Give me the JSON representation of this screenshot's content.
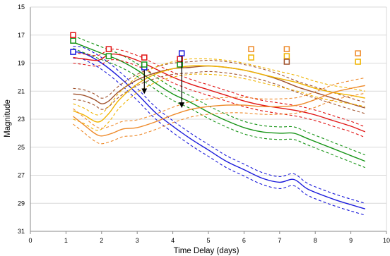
{
  "chart_data": {
    "type": "line",
    "title": "",
    "xlabel": "Time Delay (days)",
    "ylabel": "Magnitude",
    "xlim": [
      0,
      10
    ],
    "ylim": [
      31,
      15
    ],
    "y_inverted": true,
    "xticks": [
      "0",
      "1",
      "2",
      "3",
      "4",
      "5",
      "6",
      "7",
      "8",
      "9",
      "10"
    ],
    "yticks": [
      "15",
      "17",
      "19",
      "21",
      "23",
      "25",
      "27",
      "29",
      "31"
    ],
    "grid": "horizontal",
    "legend": "none",
    "series": [
      {
        "color": "#1a1adb",
        "points": [
          [
            1.2,
            18.2
          ],
          [
            1.5,
            18.3
          ],
          [
            2.0,
            19.0
          ],
          [
            2.5,
            20.0
          ],
          [
            3.0,
            21.2
          ],
          [
            3.5,
            22.5
          ],
          [
            4.0,
            23.5
          ],
          [
            4.5,
            24.4
          ],
          [
            5.0,
            25.2
          ],
          [
            5.5,
            26.0
          ],
          [
            6.0,
            26.6
          ],
          [
            6.5,
            27.2
          ],
          [
            7.0,
            27.5
          ],
          [
            7.4,
            27.3
          ],
          [
            7.8,
            28.0
          ],
          [
            8.5,
            28.7
          ],
          [
            9.0,
            29.1
          ],
          [
            9.4,
            29.4
          ]
        ],
        "band": [
          0.4,
          0.45
        ]
      },
      {
        "color": "#169416",
        "points": [
          [
            1.2,
            17.5
          ],
          [
            1.5,
            17.8
          ],
          [
            2.0,
            18.3
          ],
          [
            2.5,
            18.8
          ],
          [
            3.0,
            19.5
          ],
          [
            3.5,
            20.4
          ],
          [
            4.0,
            21.2
          ],
          [
            4.5,
            21.8
          ],
          [
            5.0,
            22.5
          ],
          [
            5.5,
            23.1
          ],
          [
            6.0,
            23.6
          ],
          [
            6.5,
            23.9
          ],
          [
            7.0,
            24.0
          ],
          [
            7.4,
            24.0
          ],
          [
            7.8,
            24.4
          ],
          [
            8.5,
            25.1
          ],
          [
            9.0,
            25.6
          ],
          [
            9.4,
            26.0
          ]
        ],
        "band": [
          0.45,
          0.45
        ]
      },
      {
        "color": "#e11414",
        "points": [
          [
            1.2,
            18.6
          ],
          [
            1.5,
            18.7
          ],
          [
            1.9,
            18.8
          ],
          [
            2.2,
            18.4
          ],
          [
            2.5,
            18.4
          ],
          [
            3.0,
            18.8
          ],
          [
            3.5,
            19.4
          ],
          [
            4.0,
            20.0
          ],
          [
            4.5,
            20.5
          ],
          [
            5.0,
            20.9
          ],
          [
            5.5,
            21.3
          ],
          [
            6.0,
            21.7
          ],
          [
            6.5,
            22.0
          ],
          [
            7.0,
            22.2
          ],
          [
            7.5,
            22.4
          ],
          [
            8.0,
            22.7
          ],
          [
            8.5,
            23.1
          ],
          [
            9.0,
            23.5
          ],
          [
            9.4,
            23.9
          ]
        ],
        "band": [
          0.35,
          0.4
        ]
      },
      {
        "color": "#a0522d",
        "points": [
          [
            1.2,
            21.2
          ],
          [
            1.5,
            21.3
          ],
          [
            1.8,
            21.6
          ],
          [
            2.0,
            21.9
          ],
          [
            2.2,
            21.7
          ],
          [
            2.5,
            21.0
          ],
          [
            3.0,
            20.2
          ],
          [
            3.5,
            19.7
          ],
          [
            4.0,
            19.4
          ],
          [
            4.5,
            19.3
          ],
          [
            5.0,
            19.2
          ],
          [
            5.5,
            19.3
          ],
          [
            6.0,
            19.5
          ],
          [
            6.5,
            19.8
          ],
          [
            7.0,
            20.2
          ],
          [
            7.5,
            20.7
          ],
          [
            8.0,
            21.1
          ],
          [
            8.5,
            21.5
          ],
          [
            9.0,
            21.9
          ],
          [
            9.4,
            22.2
          ]
        ],
        "band": [
          0.4,
          0.4
        ]
      },
      {
        "color": "#f0b400",
        "points": [
          [
            1.2,
            22.4
          ],
          [
            1.5,
            22.7
          ],
          [
            1.9,
            23.2
          ],
          [
            2.2,
            22.6
          ],
          [
            2.5,
            21.6
          ],
          [
            3.0,
            20.5
          ],
          [
            3.5,
            19.8
          ],
          [
            4.0,
            19.4
          ],
          [
            4.5,
            19.2
          ],
          [
            5.0,
            19.2
          ],
          [
            5.5,
            19.3
          ],
          [
            6.0,
            19.5
          ],
          [
            6.5,
            19.8
          ],
          [
            7.0,
            20.1
          ],
          [
            7.5,
            20.4
          ],
          [
            8.0,
            20.8
          ],
          [
            8.5,
            21.1
          ],
          [
            9.0,
            21.3
          ],
          [
            9.4,
            21.5
          ]
        ],
        "band": [
          0.5,
          0.6
        ]
      },
      {
        "color": "#ee8a2a",
        "points": [
          [
            1.2,
            22.8
          ],
          [
            1.5,
            23.4
          ],
          [
            1.8,
            24.0
          ],
          [
            2.0,
            24.2
          ],
          [
            2.3,
            24.0
          ],
          [
            2.6,
            23.7
          ],
          [
            3.0,
            23.6
          ],
          [
            3.5,
            23.2
          ],
          [
            4.0,
            22.7
          ],
          [
            4.5,
            22.3
          ],
          [
            5.0,
            22.1
          ],
          [
            5.5,
            22.0
          ],
          [
            6.0,
            22.0
          ],
          [
            6.5,
            22.1
          ],
          [
            7.0,
            22.1
          ],
          [
            7.5,
            22.0
          ],
          [
            8.0,
            21.6
          ],
          [
            8.5,
            21.1
          ],
          [
            9.0,
            20.8
          ],
          [
            9.4,
            20.6
          ]
        ],
        "band": [
          0.55,
          0.55
        ]
      }
    ],
    "markers": [
      {
        "color": "#1a1adb",
        "x": 1.2,
        "y": 18.2
      },
      {
        "color": "#169416",
        "x": 1.2,
        "y": 17.4
      },
      {
        "color": "#e11414",
        "x": 1.2,
        "y": 17.0
      },
      {
        "color": "#169416",
        "x": 2.2,
        "y": 18.5
      },
      {
        "color": "#e11414",
        "x": 2.2,
        "y": 18.0
      },
      {
        "color": "#1a1adb",
        "x": 3.2,
        "y": 19.3
      },
      {
        "color": "#169416",
        "x": 3.2,
        "y": 19.1
      },
      {
        "color": "#e11414",
        "x": 3.2,
        "y": 18.6
      },
      {
        "color": "#169416",
        "x": 4.2,
        "y": 19.1
      },
      {
        "color": "#e11414",
        "x": 4.2,
        "y": 18.7
      },
      {
        "color": "#1a1adb",
        "x": 4.25,
        "y": 18.3
      },
      {
        "color": "#ee8a2a",
        "x": 6.2,
        "y": 18.0
      },
      {
        "color": "#f0b400",
        "x": 6.2,
        "y": 18.6
      },
      {
        "color": "#ee8a2a",
        "x": 7.2,
        "y": 18.0
      },
      {
        "color": "#f0b400",
        "x": 7.2,
        "y": 18.5
      },
      {
        "color": "#a0522d",
        "x": 7.2,
        "y": 18.9
      },
      {
        "color": "#ee8a2a",
        "x": 9.2,
        "y": 18.3
      },
      {
        "color": "#f0b400",
        "x": 9.2,
        "y": 18.9
      }
    ],
    "arrows": [
      {
        "x": 3.2,
        "y_from": 19.3,
        "y_to": 21.0
      },
      {
        "x": 4.25,
        "y_from": 18.3,
        "y_to": 22.0
      }
    ]
  }
}
